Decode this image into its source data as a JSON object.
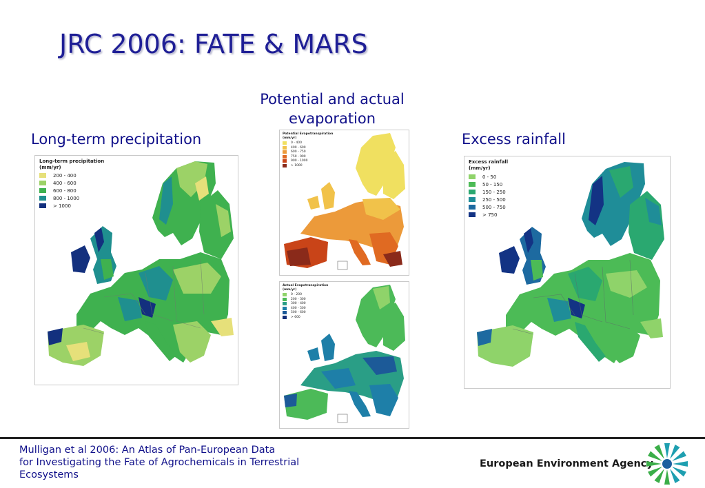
{
  "slide": {
    "title": "JRC 2006: FATE & MARS"
  },
  "captions": {
    "precipitation": "Long-term precipitation",
    "evaporation_line1": "Potential and actual",
    "evaporation_line2": "evaporation",
    "excess": "Excess rainfall"
  },
  "maps": {
    "precipitation": {
      "title": "Long-term precipitation",
      "unit": "(mm/yr)",
      "legend": [
        {
          "label": "200 - 400",
          "color": "#e6e07a"
        },
        {
          "label": "400 - 600",
          "color": "#9cd267"
        },
        {
          "label": "600 - 800",
          "color": "#3fb14f"
        },
        {
          "label": "800 - 1000",
          "color": "#1f8f8f"
        },
        {
          "label": "> 1000",
          "color": "#13307e"
        }
      ]
    },
    "potential": {
      "title": "Potential Evapotranspiration",
      "unit": "(mm/yr)",
      "legend": [
        {
          "label": "0 - 400",
          "color": "#f0e060"
        },
        {
          "label": "400 - 600",
          "color": "#f1c24a"
        },
        {
          "label": "600 - 750",
          "color": "#ec9a3a"
        },
        {
          "label": "750 - 900",
          "color": "#e06a22"
        },
        {
          "label": "900 - 1000",
          "color": "#c94418"
        },
        {
          "label": "> 1000",
          "color": "#8a2a1a"
        }
      ]
    },
    "actual": {
      "title": "Actual Evapotranspiration",
      "unit": "(mm/yr)",
      "legend": [
        {
          "label": "0 - 200",
          "color": "#8fd36a"
        },
        {
          "label": "200 - 300",
          "color": "#4cba58"
        },
        {
          "label": "300 - 400",
          "color": "#2a9e86"
        },
        {
          "label": "400 - 500",
          "color": "#1e7fa8"
        },
        {
          "label": "500 - 600",
          "color": "#1c5a98"
        },
        {
          "label": "> 600",
          "color": "#132e78"
        }
      ]
    },
    "excess": {
      "title": "Excess rainfall",
      "unit": "(mm/yr)",
      "legend": [
        {
          "label": "0  -  50",
          "color": "#8fd36a"
        },
        {
          "label": "50  - 150",
          "color": "#4cbb56"
        },
        {
          "label": "150 - 250",
          "color": "#2aa870"
        },
        {
          "label": "250 - 500",
          "color": "#1f8d98"
        },
        {
          "label": "500 - 750",
          "color": "#1d6aa0"
        },
        {
          "label": "> 750",
          "color": "#133384"
        }
      ]
    }
  },
  "footer": {
    "citation_line1": "Mulligan et al 2006: An Atlas of Pan-European Data",
    "citation_line2": "for Investigating the Fate of Agrochemicals in Terrestrial",
    "citation_line3": "Ecosystems",
    "agency": "European Environment Agency"
  }
}
